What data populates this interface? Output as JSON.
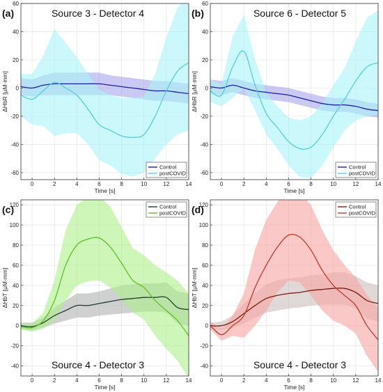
{
  "colors": {
    "control_blue": "#1f1fa0",
    "control_blue_band": "#9c9cea",
    "postcovid_cyan": "#55cfd8",
    "postcovid_cyan_band": "#a8f3f6",
    "control_dark": "#203a2b",
    "control_dark_band": "#a6aca8",
    "postcovid_green": "#5bc11e",
    "postcovid_green_band": "#aef08a",
    "control_red": "#7a1a10",
    "control_red_band": "#c7b9b7",
    "postcovid_red": "#c0392b",
    "postcovid_red_band": "#f6a3a0"
  },
  "chart_data": [
    {
      "panel_label": "(a)",
      "title": "Source 3 - Detector 4",
      "type": "line",
      "xlabel": "Time [s]",
      "ylabel": "ΔHbR [μM·mm]",
      "xlim": [
        -1,
        14
      ],
      "ylim": [
        -65,
        60
      ],
      "xticks": [
        0,
        2,
        4,
        6,
        8,
        10,
        12,
        14
      ],
      "yticks": [
        -60,
        -40,
        -20,
        0,
        20,
        40,
        60
      ],
      "grid": true,
      "legend_position": "bottom-right",
      "x": [
        -1,
        0,
        1,
        2,
        3,
        4,
        5,
        6,
        7,
        8,
        9,
        10,
        11,
        12,
        13,
        14
      ],
      "series": [
        {
          "name": "Control",
          "color_key": "control_blue",
          "values": [
            1,
            0,
            2,
            3,
            3,
            3,
            3,
            3,
            2,
            1,
            0,
            -1,
            -2,
            -2,
            -3,
            -4
          ],
          "band": [
            6,
            6,
            7,
            8,
            8,
            8,
            8,
            8,
            7,
            7,
            7,
            7,
            7,
            7,
            7,
            7
          ]
        },
        {
          "name": "postCOVID",
          "color_key": "postcovid_cyan",
          "values": [
            -5,
            -8,
            -2,
            4,
            0,
            -5,
            -15,
            -26,
            -30,
            -34,
            -35,
            -33,
            -20,
            -2,
            12,
            18
          ],
          "band": [
            15,
            18,
            25,
            38,
            32,
            27,
            25,
            25,
            25,
            27,
            28,
            27,
            30,
            38,
            45,
            48
          ]
        }
      ]
    },
    {
      "panel_label": "(b)",
      "title": "Source 6 - Detector 5",
      "type": "line",
      "xlabel": "Time [s]",
      "ylabel": "ΔHbR [μM·mm]",
      "xlim": [
        -1,
        14
      ],
      "ylim": [
        -65,
        60
      ],
      "xticks": [
        0,
        2,
        4,
        6,
        8,
        10,
        12,
        14
      ],
      "yticks": [
        -60,
        -40,
        -20,
        0,
        20,
        40,
        60
      ],
      "grid": true,
      "legend_position": "bottom-right",
      "x": [
        -1,
        0,
        1,
        2,
        3,
        4,
        5,
        6,
        7,
        8,
        9,
        10,
        11,
        12,
        13,
        14
      ],
      "series": [
        {
          "name": "Control",
          "color_key": "control_blue",
          "values": [
            1,
            0,
            2,
            0,
            -2,
            -3,
            -4,
            -5,
            -7,
            -9,
            -11,
            -12,
            -12,
            -13,
            -15,
            -16
          ],
          "band": [
            5,
            5,
            5,
            5,
            5,
            5,
            5,
            5,
            5,
            5,
            5,
            5,
            5,
            5,
            5,
            5
          ]
        },
        {
          "name": "postCOVID",
          "color_key": "postcovid_cyan",
          "values": [
            -2,
            -5,
            15,
            26,
            2,
            -18,
            -28,
            -38,
            -43,
            -42,
            -33,
            -20,
            -8,
            5,
            15,
            18
          ],
          "band": [
            8,
            8,
            22,
            26,
            18,
            15,
            15,
            17,
            20,
            22,
            22,
            22,
            22,
            28,
            35,
            37
          ]
        }
      ]
    },
    {
      "panel_label": "(c)",
      "title": "Source 4 - Detector 3",
      "type": "line",
      "xlabel": "Time [s]",
      "ylabel": "ΔHbT [μM·mm]",
      "xlim": [
        -1,
        14
      ],
      "ylim": [
        -50,
        125
      ],
      "xticks": [
        0,
        2,
        4,
        6,
        8,
        10,
        12,
        14
      ],
      "yticks": [
        -40,
        -20,
        0,
        20,
        40,
        60,
        80,
        100,
        120
      ],
      "grid": true,
      "legend_position": "top-right",
      "x": [
        -1,
        0,
        1,
        2,
        3,
        4,
        5,
        6,
        7,
        8,
        9,
        10,
        11,
        12,
        13,
        14
      ],
      "series": [
        {
          "name": "Control",
          "color_key": "control_dark",
          "values": [
            0,
            -1,
            3,
            10,
            15,
            20,
            20,
            22,
            24,
            26,
            27,
            28,
            28,
            28,
            18,
            16
          ],
          "band": [
            3,
            4,
            5,
            8,
            10,
            12,
            12,
            12,
            13,
            14,
            14,
            14,
            14,
            15,
            16,
            16
          ]
        },
        {
          "name": "postCOVID",
          "color_key": "postcovid_green",
          "values": [
            -1,
            -2,
            5,
            25,
            60,
            80,
            86,
            87,
            78,
            62,
            45,
            38,
            25,
            15,
            5,
            -10
          ],
          "band": [
            3,
            4,
            8,
            20,
            35,
            40,
            42,
            42,
            40,
            36,
            32,
            32,
            35,
            38,
            40,
            42
          ]
        }
      ]
    },
    {
      "panel_label": "(d)",
      "title": "Source 4 - Detector 3",
      "type": "line",
      "xlabel": "Time [s]",
      "ylabel": "ΔHbT [μM·mm]",
      "xlim": [
        -1,
        14
      ],
      "ylim": [
        -50,
        125
      ],
      "xticks": [
        0,
        2,
        4,
        6,
        8,
        10,
        12,
        14
      ],
      "yticks": [
        -40,
        -20,
        0,
        20,
        40,
        60,
        80,
        100,
        120
      ],
      "grid": true,
      "legend_position": "top-right",
      "x": [
        -1,
        0,
        1,
        2,
        3,
        4,
        5,
        6,
        7,
        8,
        9,
        10,
        11,
        12,
        13,
        14
      ],
      "series": [
        {
          "name": "Control",
          "color_key": "control_red",
          "values": [
            0,
            0,
            4,
            12,
            20,
            27,
            30,
            32,
            33,
            35,
            36,
            37,
            37,
            33,
            25,
            22
          ],
          "band": [
            3,
            4,
            6,
            10,
            12,
            14,
            15,
            15,
            15,
            15,
            15,
            16,
            16,
            16,
            18,
            18
          ]
        },
        {
          "name": "postCOVID",
          "color_key": "postcovid_red",
          "values": [
            0,
            -9,
            0,
            10,
            38,
            60,
            78,
            90,
            88,
            75,
            55,
            40,
            30,
            20,
            0,
            -14
          ],
          "band": [
            4,
            6,
            10,
            22,
            38,
            45,
            45,
            45,
            45,
            45,
            40,
            35,
            30,
            28,
            30,
            32
          ]
        }
      ]
    }
  ]
}
